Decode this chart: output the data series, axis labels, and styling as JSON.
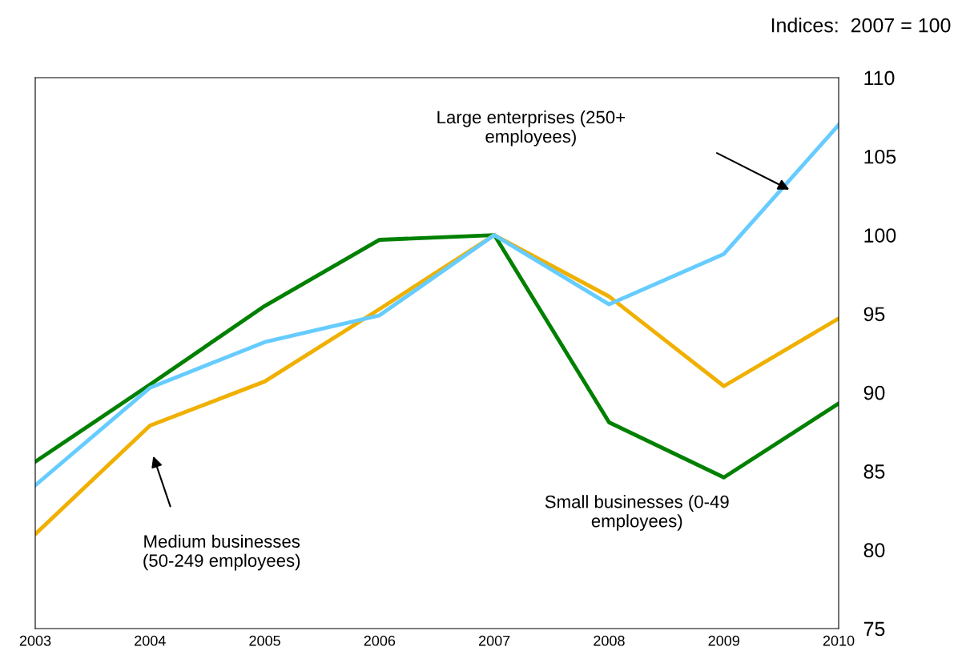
{
  "chart_data": {
    "type": "line",
    "ylabel": "Indices:  2007 = 100",
    "x": [
      2003,
      2004,
      2005,
      2006,
      2007,
      2008,
      2009,
      2010
    ],
    "xlim": [
      2003,
      2010
    ],
    "xticks": [
      2003,
      2004,
      2005,
      2006,
      2007,
      2008,
      2009,
      2010
    ],
    "ylim": [
      75,
      110
    ],
    "yticks": [
      75,
      80,
      85,
      90,
      95,
      100,
      105,
      110
    ],
    "grid": false,
    "legend": false,
    "marker": "none",
    "line_style": "solid",
    "series": [
      {
        "color": "#008000",
        "values": [
          85.6,
          90.5,
          95.5,
          99.7,
          100,
          88.1,
          84.6,
          89.3
        ]
      },
      {
        "color": "#f0b000",
        "values": [
          81.0,
          87.9,
          90.7,
          95.3,
          100,
          96.1,
          90.4,
          94.7
        ]
      },
      {
        "color": "#66ccff",
        "values": [
          84.1,
          90.3,
          93.2,
          94.9,
          100,
          95.6,
          98.8,
          107.0
        ]
      }
    ],
    "annotations": [
      "Large enterprises (250+\nemployees)",
      "Medium businesses\n(50-249 employees)",
      "Small businesses (0-49\nemployees)"
    ]
  }
}
